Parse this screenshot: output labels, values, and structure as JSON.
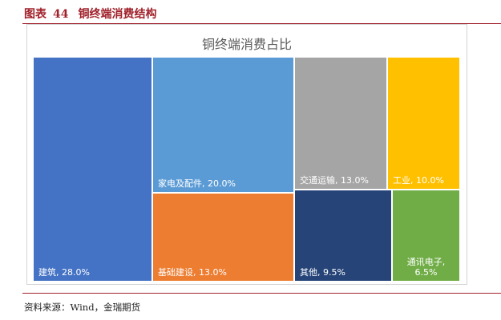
{
  "figure": {
    "label": "图表",
    "number": "44",
    "title": "铜终端消费结构",
    "source": "资料来源：Wind，金瑞期货"
  },
  "chart_data": {
    "type": "treemap",
    "title": "铜终端消费占比",
    "unit": "%",
    "items": [
      {
        "name": "建筑",
        "value": 28.0,
        "label": "建筑, 28.0%",
        "color": "#4472c4"
      },
      {
        "name": "家电及配件",
        "value": 20.0,
        "label": "家电及配件, 20.0%",
        "color": "#5b9bd5"
      },
      {
        "name": "基础建设",
        "value": 13.0,
        "label": "基础建设, 13.0%",
        "color": "#ed7d31"
      },
      {
        "name": "交通运输",
        "value": 13.0,
        "label": "交通运输, 13.0%",
        "color": "#a5a5a5"
      },
      {
        "name": "工业",
        "value": 10.0,
        "label": "工业, 10.0%",
        "color": "#ffc000"
      },
      {
        "name": "其他",
        "value": 9.5,
        "label": "其他, 9.5%",
        "color": "#264478"
      },
      {
        "name": "通讯电子",
        "value": 6.5,
        "label": "通讯电子, 6.5%",
        "label_lines": [
          "通讯电子,",
          "6.5%"
        ],
        "color": "#70ad47"
      }
    ]
  }
}
